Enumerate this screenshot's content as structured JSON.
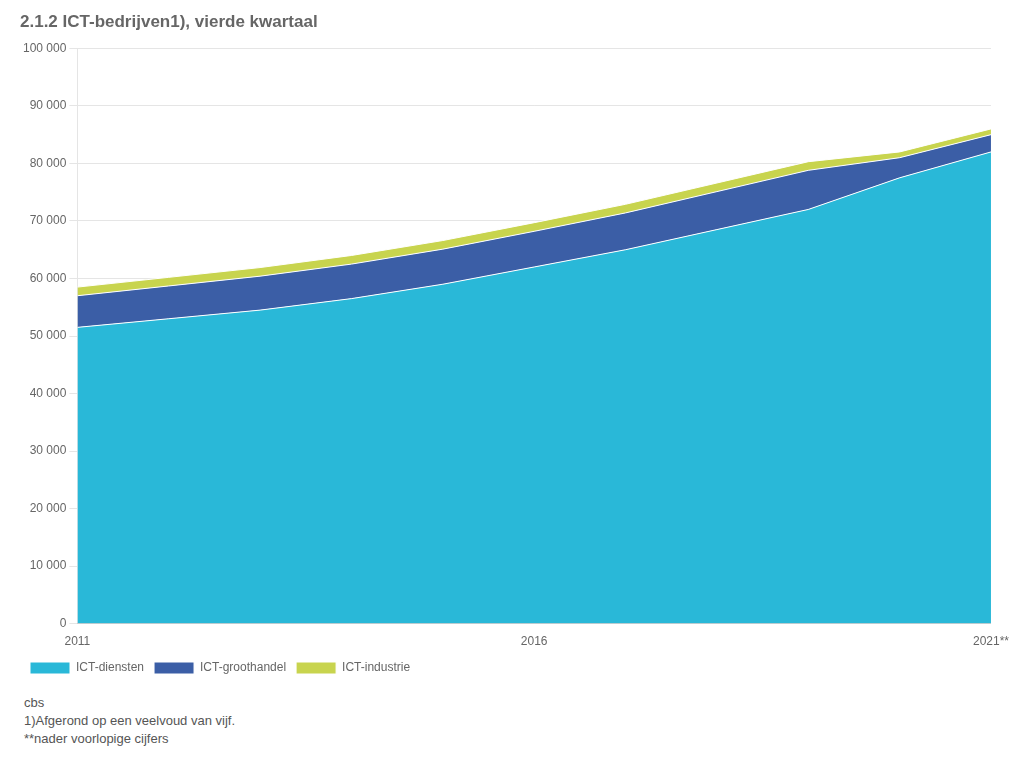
{
  "chart_data": {
    "type": "area",
    "title": "2.1.2 ICT-bedrijven1), vierde kwartaal",
    "x": [
      2011,
      2012,
      2013,
      2014,
      2015,
      2016,
      2017,
      2018,
      2019,
      2020,
      2021
    ],
    "series": [
      {
        "name": "ICT-diensten",
        "color": "#29b8d8",
        "values": [
          51500,
          53000,
          54500,
          56500,
          59000,
          62000,
          65000,
          68500,
          72000,
          77500,
          82000
        ]
      },
      {
        "name": "ICT-groothandel",
        "color": "#3b5ea6",
        "values": [
          5500,
          5700,
          5900,
          6000,
          6100,
          6200,
          6400,
          6600,
          6800,
          3500,
          3000
        ]
      },
      {
        "name": "ICT-industrie",
        "color": "#c8d44e",
        "values": [
          1500,
          1500,
          1500,
          1500,
          1500,
          1500,
          1500,
          1500,
          1500,
          1000,
          1000
        ]
      }
    ],
    "stacked": true,
    "xlim": [
      2011,
      2021
    ],
    "xticks": [
      2011,
      2016,
      {
        "value": 2021,
        "label": "2021**"
      }
    ],
    "ylim": [
      0,
      100000
    ],
    "yticks": [
      0,
      {
        "value": 10000,
        "label": "10 000"
      },
      {
        "value": 20000,
        "label": "20 000"
      },
      {
        "value": 30000,
        "label": "30 000"
      },
      {
        "value": 40000,
        "label": "40 000"
      },
      {
        "value": 50000,
        "label": "50 000"
      },
      {
        "value": 60000,
        "label": "60 000"
      },
      {
        "value": 70000,
        "label": "70 000"
      },
      {
        "value": 80000,
        "label": "80 000"
      },
      {
        "value": 90000,
        "label": "90 000"
      },
      {
        "value": 100000,
        "label": "100 000"
      }
    ],
    "grid": "y",
    "legend": "bottom",
    "annotations": [
      "cbs",
      "1)Afgerond op een veelvoud van vijf.",
      "**nader voorlopige cijfers"
    ]
  }
}
